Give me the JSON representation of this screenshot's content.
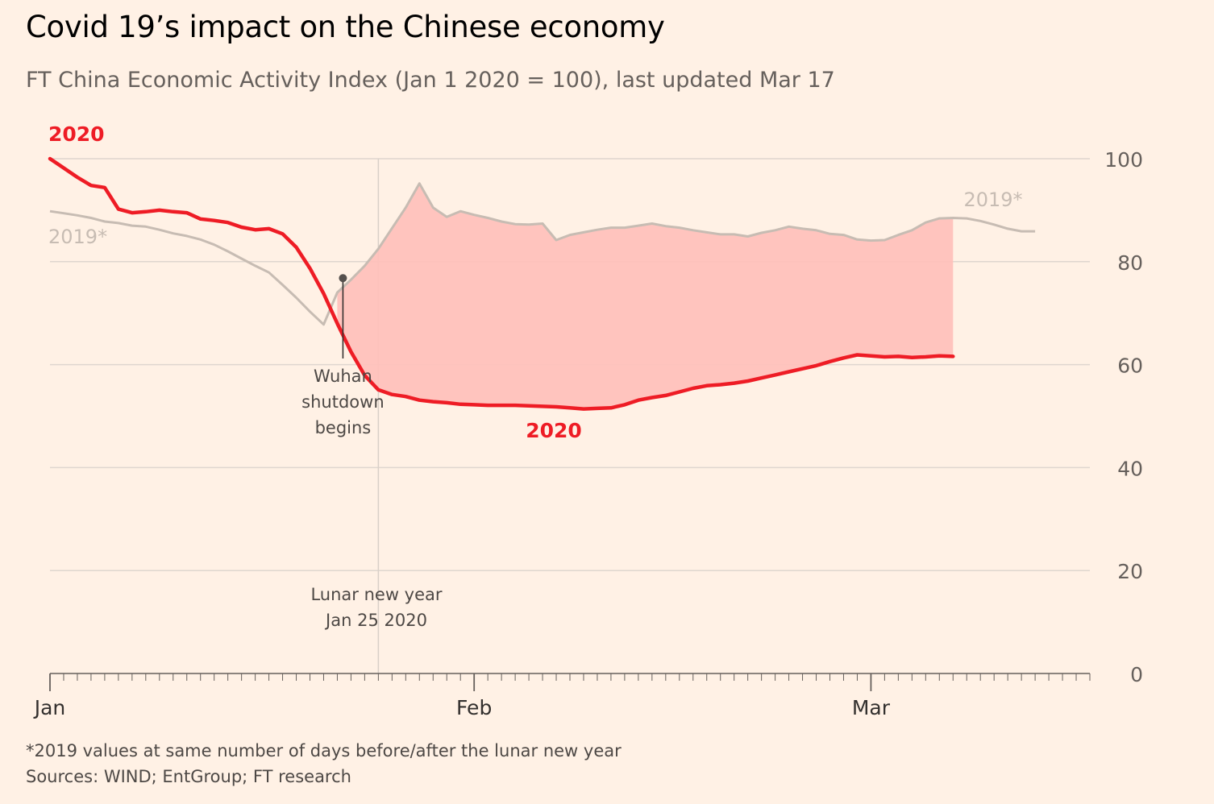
{
  "title": "Covid 19’s impact on the Chinese economy",
  "subtitle": "FT China Economic Activity Index (Jan 1 2020 = 100), last updated Mar 17",
  "footnote": "*2019 values at same number of days before/after the lunar new year",
  "sources": "Sources: WIND; EntGroup; FT research",
  "colors": {
    "background": "#fff1e5",
    "series_2020": "#ee1c25",
    "series_2019": "#c7bcb3",
    "gap_fill": "#ffc0bb",
    "grid": "#dfd6cf",
    "axis": "#66605c"
  },
  "chart_data": {
    "type": "line",
    "x_unit": "day of year 2020 (0 = Jan 1)",
    "xlim": [
      0,
      76
    ],
    "ylim": [
      0,
      100
    ],
    "yticks": [
      0,
      20,
      40,
      60,
      80,
      100
    ],
    "xtick_labels": [
      {
        "day": 0,
        "label": "Jan"
      },
      {
        "day": 31,
        "label": "Feb"
      },
      {
        "day": 60,
        "label": "Mar"
      }
    ],
    "series": [
      {
        "name": "2020",
        "label": "2020",
        "points": [
          [
            0,
            100
          ],
          [
            1,
            98.2
          ],
          [
            2,
            96.4
          ],
          [
            3,
            94.8
          ],
          [
            4,
            94.4
          ],
          [
            5,
            90.2
          ],
          [
            6,
            89.5
          ],
          [
            7,
            89.7
          ],
          [
            8,
            90
          ],
          [
            9,
            89.7
          ],
          [
            10,
            89.5
          ],
          [
            11,
            88.3
          ],
          [
            12,
            88
          ],
          [
            13,
            87.6
          ],
          [
            14,
            86.7
          ],
          [
            15,
            86.2
          ],
          [
            16,
            86.4
          ],
          [
            17,
            85.4
          ],
          [
            18,
            82.8
          ],
          [
            19,
            78.7
          ],
          [
            20,
            73.8
          ],
          [
            21,
            68
          ],
          [
            22,
            62.5
          ],
          [
            23,
            57.9
          ],
          [
            24,
            55.1
          ],
          [
            25,
            54.2
          ],
          [
            26,
            53.8
          ],
          [
            27,
            53.1
          ],
          [
            28,
            52.8
          ],
          [
            29,
            52.6
          ],
          [
            30,
            52.3
          ],
          [
            31,
            52.2
          ],
          [
            32,
            52.1
          ],
          [
            33,
            52.1
          ],
          [
            34,
            52.1
          ],
          [
            35,
            52
          ],
          [
            36,
            51.9
          ],
          [
            37,
            51.8
          ],
          [
            38,
            51.6
          ],
          [
            39,
            51.4
          ],
          [
            40,
            51.5
          ],
          [
            41,
            51.6
          ],
          [
            42,
            52.2
          ],
          [
            43,
            53.1
          ],
          [
            44,
            53.6
          ],
          [
            45,
            54
          ],
          [
            46,
            54.7
          ],
          [
            47,
            55.4
          ],
          [
            48,
            55.9
          ],
          [
            49,
            56.1
          ],
          [
            50,
            56.4
          ],
          [
            51,
            56.8
          ],
          [
            52,
            57.4
          ],
          [
            53,
            58
          ],
          [
            54,
            58.6
          ],
          [
            55,
            59.2
          ],
          [
            56,
            59.8
          ],
          [
            57,
            60.6
          ],
          [
            58,
            61.3
          ],
          [
            59,
            61.9
          ],
          [
            60,
            61.7
          ],
          [
            61,
            61.5
          ],
          [
            62,
            61.6
          ],
          [
            63,
            61.4
          ],
          [
            64,
            61.5
          ],
          [
            65,
            61.7
          ],
          [
            66,
            61.6
          ]
        ]
      },
      {
        "name": "2019*",
        "label": "2019*",
        "points": [
          [
            0,
            89.8
          ],
          [
            1,
            89.4
          ],
          [
            2,
            89
          ],
          [
            3,
            88.5
          ],
          [
            4,
            87.8
          ],
          [
            5,
            87.5
          ],
          [
            6,
            87
          ],
          [
            7,
            86.8
          ],
          [
            8,
            86.2
          ],
          [
            9,
            85.5
          ],
          [
            10,
            85
          ],
          [
            11,
            84.3
          ],
          [
            12,
            83.3
          ],
          [
            13,
            82
          ],
          [
            14,
            80.6
          ],
          [
            15,
            79.2
          ],
          [
            16,
            77.9
          ],
          [
            17,
            75.5
          ],
          [
            18,
            73
          ],
          [
            19,
            70.3
          ],
          [
            20,
            67.8
          ],
          [
            21,
            74
          ],
          [
            22,
            76.5
          ],
          [
            23,
            79.2
          ],
          [
            24,
            82.5
          ],
          [
            25,
            86.5
          ],
          [
            26,
            90.5
          ],
          [
            27,
            95.2
          ],
          [
            28,
            90.5
          ],
          [
            29,
            88.7
          ],
          [
            30,
            89.8
          ],
          [
            31,
            89.1
          ],
          [
            32,
            88.5
          ],
          [
            33,
            87.8
          ],
          [
            34,
            87.3
          ],
          [
            35,
            87.2
          ],
          [
            36,
            87.4
          ],
          [
            37,
            84.2
          ],
          [
            38,
            85.2
          ],
          [
            39,
            85.7
          ],
          [
            40,
            86.2
          ],
          [
            41,
            86.6
          ],
          [
            42,
            86.6
          ],
          [
            43,
            87
          ],
          [
            44,
            87.4
          ],
          [
            45,
            86.9
          ],
          [
            46,
            86.6
          ],
          [
            47,
            86.1
          ],
          [
            48,
            85.7
          ],
          [
            49,
            85.3
          ],
          [
            50,
            85.3
          ],
          [
            51,
            84.9
          ],
          [
            52,
            85.6
          ],
          [
            53,
            86.1
          ],
          [
            54,
            86.8
          ],
          [
            55,
            86.4
          ],
          [
            56,
            86.1
          ],
          [
            57,
            85.4
          ],
          [
            58,
            85.2
          ],
          [
            59,
            84.3
          ],
          [
            60,
            84.1
          ],
          [
            61,
            84.2
          ],
          [
            62,
            85.2
          ],
          [
            63,
            86.1
          ],
          [
            64,
            87.6
          ],
          [
            65,
            88.4
          ],
          [
            66,
            88.5
          ],
          [
            67,
            88.4
          ],
          [
            68,
            87.9
          ],
          [
            69,
            87.2
          ],
          [
            70,
            86.4
          ],
          [
            71,
            85.9
          ],
          [
            72,
            85.9
          ]
        ]
      }
    ],
    "annotations": [
      {
        "name": "wuhan-shutdown",
        "day": 22,
        "value": 76.8,
        "lines": [
          "Wuhan",
          "shutdown",
          "begins"
        ]
      },
      {
        "name": "lunar-new-year",
        "day": 24,
        "lines": [
          "Lunar new year",
          "Jan 25 2020"
        ]
      }
    ]
  }
}
